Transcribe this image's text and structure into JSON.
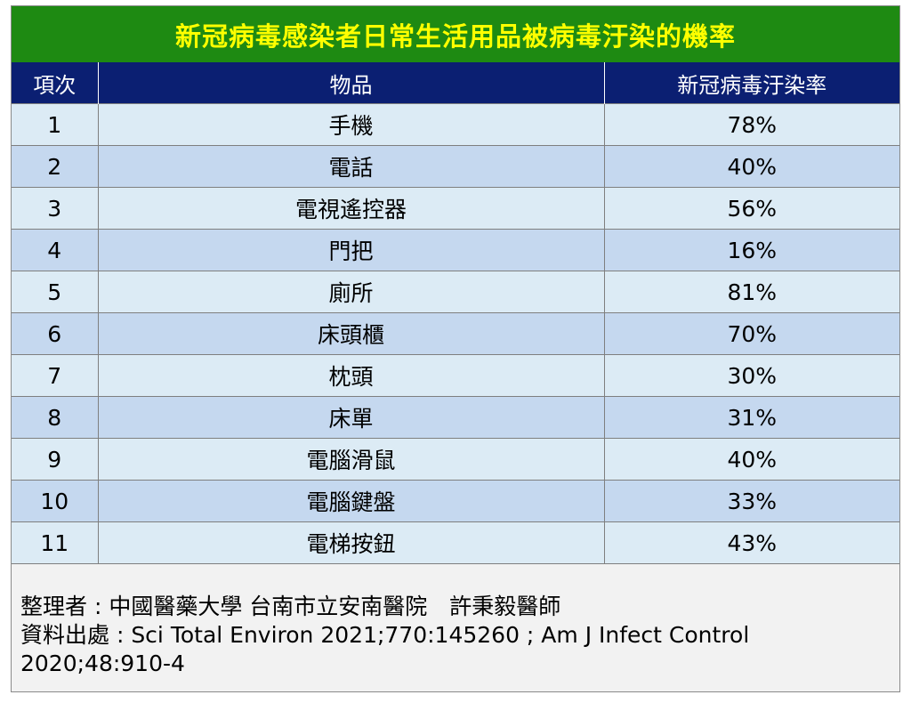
{
  "title": "新冠病毒感染者日常生活用品被病毒汙染的機率",
  "headers": [
    "項次",
    "物品",
    "新冠病毒汙染率"
  ],
  "rows": [
    [
      "1",
      "手機",
      "78%"
    ],
    [
      "2",
      "電話",
      "40%"
    ],
    [
      "3",
      "電視遙控器",
      "56%"
    ],
    [
      "4",
      "門把",
      "16%"
    ],
    [
      "5",
      "廁所",
      "81%"
    ],
    [
      "6",
      "床頭櫃",
      "70%"
    ],
    [
      "7",
      "枕頭",
      "30%"
    ],
    [
      "8",
      "床單",
      "31%"
    ],
    [
      "9",
      "電腦滑鼠",
      "40%"
    ],
    [
      "10",
      "電腦鍵盤",
      "33%"
    ],
    [
      "11",
      "電梯按鈕",
      "43%"
    ]
  ],
  "notes": {
    "compiler": "整理者 : 中國醫藥大學 台南市立安南醫院　許秉毅醫師",
    "source": "資料出處 : Sci Total Environ 2021;770:145260 ; Am J Infect Control 2020;48:910-4"
  }
}
